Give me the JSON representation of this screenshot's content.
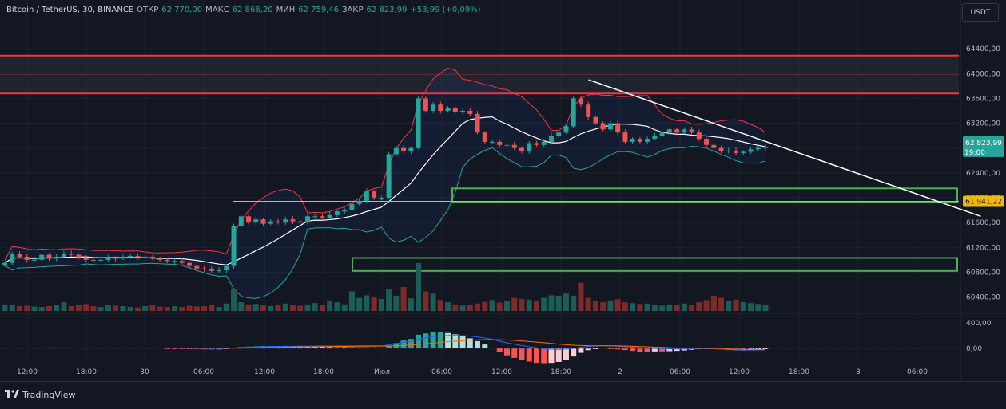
{
  "header": {
    "symbol": "Bitcoin / TetherUS, 30, BINANCE",
    "open_label": "ОТКР",
    "open": "62 770,00",
    "high_label": "МАКС",
    "high": "62 866,20",
    "low_label": "МИН",
    "low": "62 759,46",
    "close_label": "ЗАКР",
    "close": "62 823,99",
    "change": "+53,99 (+0,09%)"
  },
  "currency_button": "USDT",
  "footer": {
    "brand": "TradingView",
    "logo_icon": "tradingview-logo-icon"
  },
  "colors": {
    "background": "#131722",
    "up": "#26a69a",
    "down": "#ef5350",
    "resistance": "#f23645",
    "support_box": "#4caf50",
    "marker": "#f0b90b",
    "trendline": "#ffffff"
  },
  "chart_data": {
    "type": "candlestick",
    "title": "",
    "price_axis": {
      "ticks": [
        "64400,00",
        "64000,00",
        "63600,00",
        "63200,00",
        "62800,00",
        "62400,00",
        "62000,00",
        "61600,00",
        "61200,00",
        "60800,00",
        "60400,00"
      ],
      "ylim": [
        60150,
        64800
      ]
    },
    "time_axis": {
      "ticks": [
        "12:00",
        "18:00",
        "30",
        "06:00",
        "12:00",
        "18:00",
        "Июл",
        "06:00",
        "12:00",
        "18:00",
        "2",
        "06:00",
        "12:00",
        "18:00",
        "3",
        "06:00"
      ]
    },
    "last_price": {
      "value": "62 823,99",
      "countdown": "19:00"
    },
    "marker_price": {
      "value": "61 941,22",
      "price": 61941.22
    },
    "resistance_zone": {
      "top": 64290,
      "bottom": 63680
    },
    "support_zones": [
      {
        "top": 62150,
        "bottom": 61930,
        "start_label": "06:00 Jul 1"
      },
      {
        "top": 61030,
        "bottom": 60820,
        "start_label": "Jun 30 ~21:00"
      }
    ],
    "trendline": {
      "from": [
        0.585,
        63900
      ],
      "to": [
        0.975,
        61700
      ]
    },
    "series": [
      {
        "name": "close",
        "values": [
          60950,
          61100,
          61050,
          61000,
          61000,
          61080,
          61020,
          61050,
          61100,
          61080,
          61040,
          61000,
          60990,
          61000,
          61030,
          61020,
          61050,
          61060,
          61040,
          61050,
          61020,
          61000,
          60980,
          60980,
          60950,
          60900,
          60860,
          60850,
          60820,
          60830,
          60900,
          61550,
          61700,
          61600,
          61650,
          61580,
          61620,
          61600,
          61650,
          61620,
          61600,
          61700,
          61700,
          61680,
          61720,
          61780,
          61800,
          61900,
          61950,
          62100,
          62000,
          62000,
          62700,
          62800,
          62750,
          62800,
          63600,
          63400,
          63500,
          63400,
          63450,
          63380,
          63400,
          63350,
          63050,
          62900,
          62900,
          62850,
          62850,
          62800,
          62750,
          62880,
          62850,
          62900,
          63000,
          63050,
          63150,
          63600,
          63500,
          63300,
          63200,
          63100,
          63200,
          63050,
          62900,
          62950,
          62900,
          62950,
          63000,
          63050,
          63100,
          63050,
          63100,
          63050,
          62950,
          62850,
          62800,
          62750,
          62760,
          62720,
          62740,
          62780,
          62800,
          62823.99
        ]
      },
      {
        "name": "volume",
        "values": [
          30,
          26,
          22,
          24,
          20,
          18,
          22,
          26,
          40,
          22,
          28,
          32,
          22,
          18,
          26,
          24,
          22,
          18,
          16,
          22,
          26,
          20,
          18,
          22,
          18,
          24,
          20,
          22,
          30,
          18,
          34,
          100,
          40,
          30,
          32,
          26,
          22,
          28,
          34,
          26,
          24,
          30,
          36,
          28,
          44,
          40,
          30,
          90,
          60,
          72,
          62,
          55,
          100,
          70,
          110,
          58,
          220,
          90,
          80,
          50,
          40,
          30,
          24,
          26,
          34,
          42,
          50,
          38,
          46,
          60,
          55,
          52,
          48,
          60,
          72,
          70,
          80,
          70,
          130,
          60,
          46,
          40,
          48,
          54,
          40,
          36,
          32,
          34,
          28,
          24,
          30,
          26,
          34,
          28,
          40,
          50,
          70,
          60,
          44,
          52,
          40,
          36,
          32,
          26
        ]
      },
      {
        "name": "macd",
        "values": [
          8,
          8,
          8,
          8,
          8,
          8,
          9,
          9,
          9,
          8,
          8,
          8,
          8,
          8,
          8,
          8,
          8,
          8,
          8,
          8,
          8,
          8,
          6,
          4,
          2,
          0,
          -2,
          -4,
          -6,
          -6,
          -4,
          6,
          14,
          20,
          25,
          30,
          33,
          35,
          37,
          38,
          39,
          40,
          41,
          42,
          43,
          44,
          45,
          45,
          46,
          47,
          46,
          45,
          60,
          85,
          110,
          130,
          170,
          190,
          210,
          225,
          230,
          232,
          228,
          220,
          205,
          185,
          160,
          130,
          100,
          75,
          50,
          30,
          10,
          -5,
          -15,
          -20,
          -15,
          0,
          20,
          35,
          45,
          50,
          45,
          38,
          30,
          20,
          10,
          5,
          0,
          -5,
          -8,
          -10,
          -10,
          -8,
          -6,
          -4,
          -8,
          -15,
          -22,
          -28,
          -32,
          -30,
          -28,
          -26
        ]
      },
      {
        "name": "signal",
        "values": [
          8,
          8,
          8,
          8,
          8,
          8,
          8,
          8,
          8,
          8,
          8,
          8,
          8,
          8,
          8,
          8,
          8,
          8,
          8,
          8,
          8,
          8,
          8,
          7,
          6,
          5,
          4,
          3,
          2,
          1,
          0,
          2,
          4,
          7,
          10,
          13,
          16,
          18,
          21,
          23,
          25,
          27,
          29,
          31,
          33,
          34,
          36,
          37,
          38,
          39,
          40,
          41,
          43,
          47,
          54,
          62,
          72,
          83,
          95,
          108,
          120,
          131,
          140,
          148,
          153,
          157,
          157,
          155,
          150,
          143,
          134,
          124,
          113,
          101,
          89,
          77,
          66,
          58,
          52,
          48,
          47,
          47,
          46,
          45,
          42,
          38,
          33,
          28,
          22,
          17,
          12,
          8,
          5,
          2,
          0,
          -2,
          -4,
          -7,
          -10,
          -14,
          -17,
          -20,
          -22,
          -24
        ]
      }
    ],
    "macd_axis": {
      "ticks": [
        "400,00",
        "0,00"
      ]
    }
  }
}
